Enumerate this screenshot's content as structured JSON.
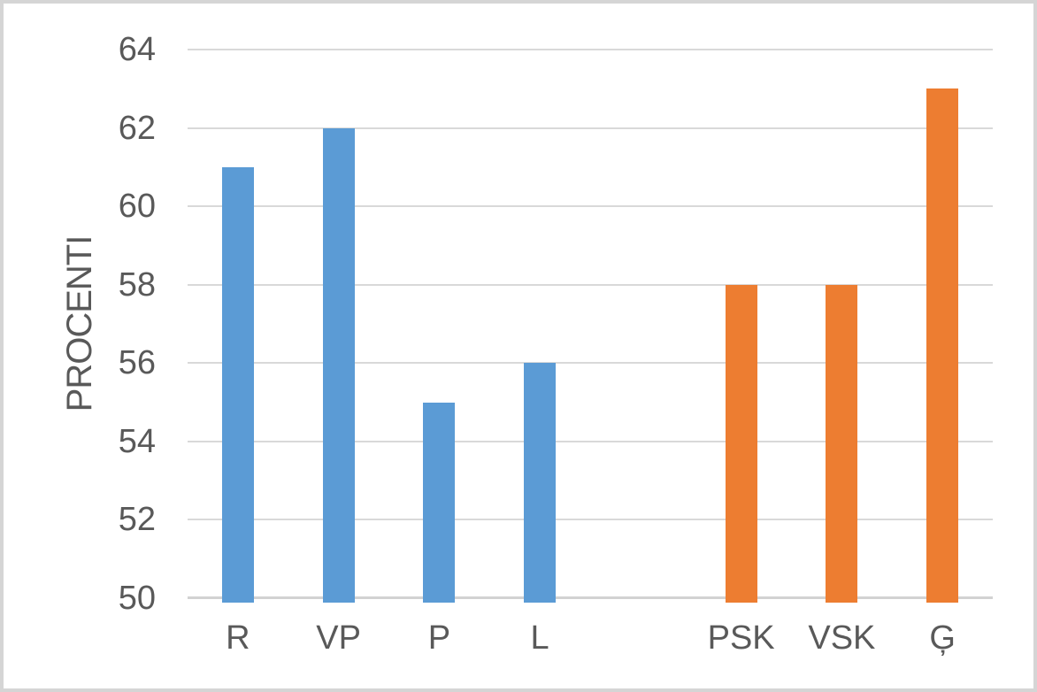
{
  "chart_data": {
    "type": "bar",
    "title": "",
    "xlabel": "",
    "ylabel": "PROCENTI",
    "ylim": [
      50,
      64
    ],
    "yticks": [
      50,
      52,
      54,
      56,
      58,
      60,
      62,
      64
    ],
    "grid": true,
    "legend_position": "none",
    "categories": [
      "R",
      "VP",
      "P",
      "L",
      "",
      "PSK",
      "VSK",
      "Ģ"
    ],
    "values": [
      61,
      62,
      55,
      56,
      null,
      58,
      58,
      63
    ],
    "bar_colors": [
      "#5B9BD5",
      "#5B9BD5",
      "#5B9BD5",
      "#5B9BD5",
      null,
      "#ED7D31",
      "#ED7D31",
      "#ED7D31"
    ]
  },
  "colors": {
    "bar_blue": "#5B9BD5",
    "bar_orange": "#ED7D31",
    "gridline": "#D9D9D9",
    "axis_line": "#D2D2D2",
    "tick_text": "#595959",
    "frame_border": "#D5D5D5",
    "background": "#FFFFFF"
  }
}
